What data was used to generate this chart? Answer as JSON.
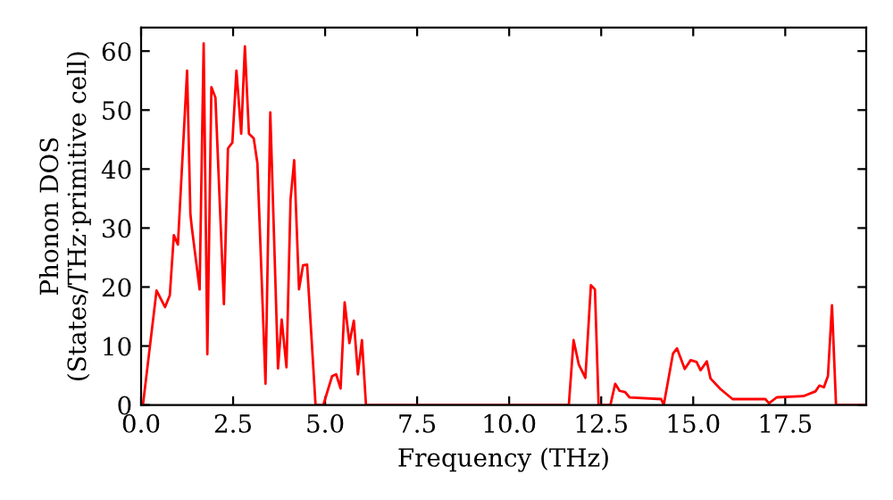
{
  "chart_data": {
    "type": "line",
    "xlabel": "Frequency (THz)",
    "ylabel": "Phonon DOS\n(States/THz·primitive cell)",
    "xlim": [
      0,
      19.7
    ],
    "ylim": [
      0,
      64
    ],
    "xticks": [
      {
        "value": 0,
        "label": "0.0"
      },
      {
        "value": 2.5,
        "label": "2.5"
      },
      {
        "value": 5,
        "label": "5.0"
      },
      {
        "value": 7.5,
        "label": "7.5"
      },
      {
        "value": 10,
        "label": "10.0"
      },
      {
        "value": 12.5,
        "label": "12.5"
      },
      {
        "value": 15,
        "label": "15.0"
      },
      {
        "value": 17.5,
        "label": "17.5"
      }
    ],
    "yticks": [
      0,
      10,
      20,
      30,
      40,
      50,
      60
    ],
    "grid": false,
    "legend": false,
    "marker": "none",
    "line_style": "solid",
    "series": [
      {
        "color": "#ff0000",
        "x": [
          0.05,
          0.42,
          0.65,
          0.78,
          0.89,
          1.0,
          1.25,
          1.34,
          1.38,
          1.59,
          1.7,
          1.8,
          1.91,
          2.02,
          2.25,
          2.36,
          2.48,
          2.59,
          2.72,
          2.82,
          2.93,
          3.06,
          3.16,
          3.38,
          3.51,
          3.72,
          3.82,
          3.95,
          4.06,
          4.16,
          4.29,
          4.4,
          4.51,
          4.74,
          4.95,
          5.19,
          5.3,
          5.42,
          5.53,
          5.66,
          5.78,
          5.89,
          6.0,
          6.11,
          11.62,
          11.75,
          11.89,
          12.07,
          12.22,
          12.33,
          12.43,
          12.75,
          12.88,
          13.0,
          13.15,
          13.27,
          14.13,
          14.2,
          14.45,
          14.56,
          14.77,
          14.93,
          15.09,
          15.2,
          15.37,
          15.47,
          15.74,
          16.07,
          16.96,
          17.06,
          17.27,
          17.99,
          18.32,
          18.43,
          18.55,
          18.66,
          18.77,
          18.88,
          19.7
        ],
        "values": [
          0,
          19.4,
          16.6,
          18.6,
          28.8,
          27.2,
          56.7,
          32.3,
          30,
          19.6,
          61.3,
          8.6,
          53.9,
          52.1,
          17.1,
          43.5,
          44.5,
          56.7,
          46,
          60.8,
          46,
          45.2,
          41,
          3.6,
          49.6,
          6.2,
          14.5,
          6.4,
          34.8,
          41.5,
          19.6,
          23.7,
          23.8,
          0,
          0,
          4.9,
          5.2,
          2.8,
          17.4,
          10.5,
          14.3,
          5.2,
          11.0,
          0,
          0,
          11,
          6.9,
          4.6,
          20.3,
          19.6,
          0,
          0,
          3.6,
          2.4,
          2.2,
          1.3,
          1.0,
          0,
          8.7,
          9.6,
          6.1,
          7.6,
          7.3,
          5.9,
          7.4,
          4.5,
          2.7,
          1.0,
          1.0,
          0.3,
          1.3,
          1.5,
          2.3,
          3.3,
          3.0,
          4.9,
          16.9,
          0,
          0
        ]
      }
    ]
  }
}
